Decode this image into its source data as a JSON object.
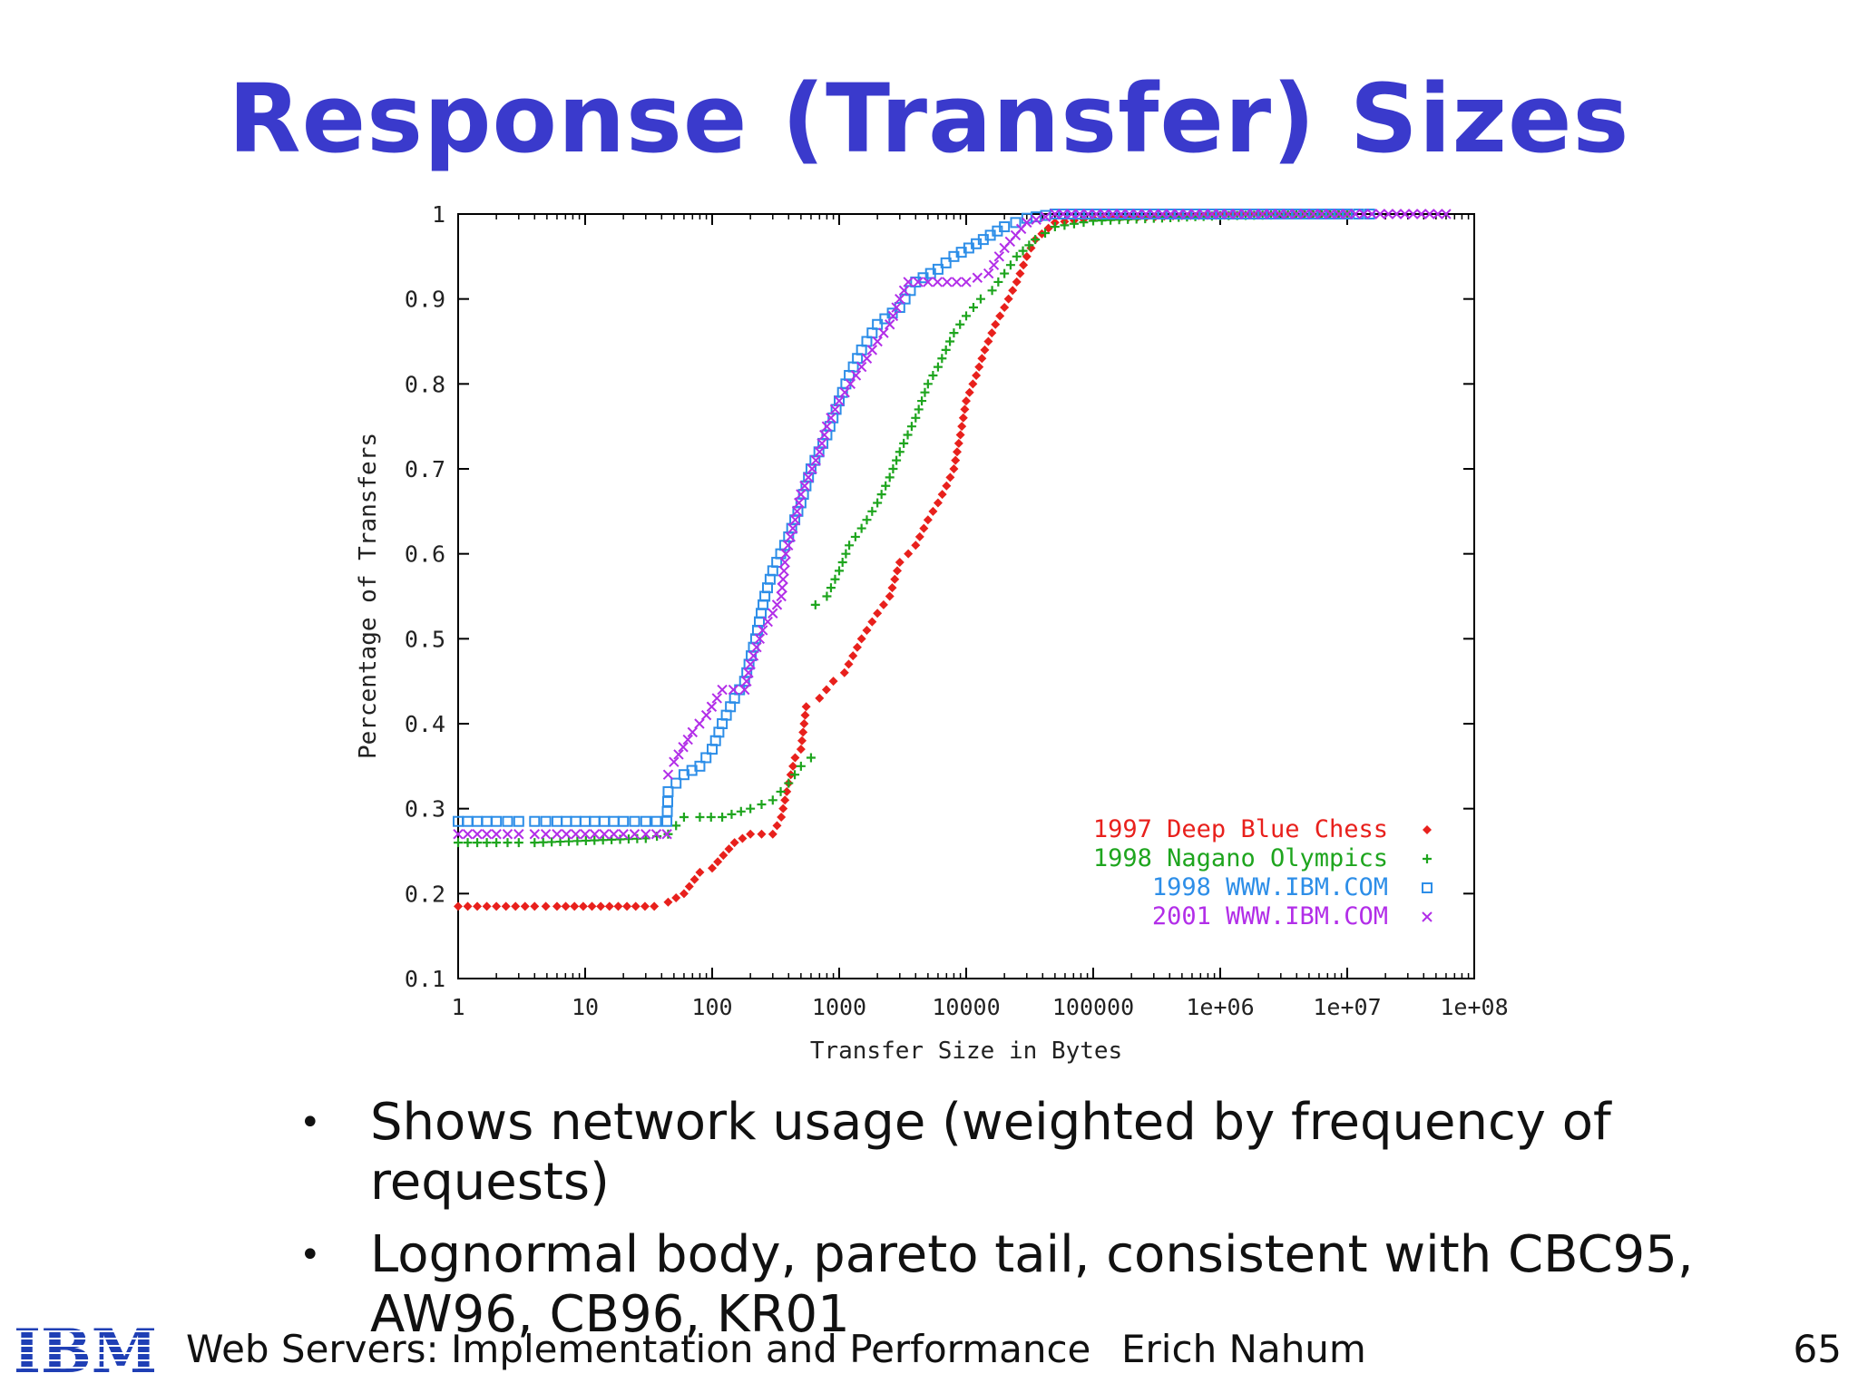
{
  "slide": {
    "title": "Response (Transfer) Sizes",
    "bullets": [
      "Shows network usage (weighted by frequency of requests)",
      "Lognormal body, pareto tail, consistent with CBC95, AW96, CB96, KR01"
    ],
    "footer": {
      "logo_text": "IBM",
      "course": "Web Servers: Implementation and Performance",
      "author": "Erich Nahum",
      "page": "65"
    }
  },
  "colors": {
    "title": "#3a3acc",
    "red": "#e8201c",
    "green": "#1ea51e",
    "blue": "#2d8ee8",
    "purple": "#b22ee8"
  },
  "chart_data": {
    "type": "scatter",
    "xlabel": "Transfer Size in Bytes",
    "ylabel": "Percentage of Transfers",
    "xscale": "log",
    "xlim": [
      1,
      100000000
    ],
    "ylim": [
      0.1,
      1
    ],
    "xticks": [
      "1",
      "10",
      "100",
      "1000",
      "10000",
      "100000",
      "1e+06",
      "1e+07",
      "1e+08"
    ],
    "yticks": [
      "0.1",
      "0.2",
      "0.3",
      "0.4",
      "0.5",
      "0.6",
      "0.7",
      "0.8",
      "0.9",
      "1"
    ],
    "legend_position": "bottom-right",
    "series": [
      {
        "name": "1997 Deep Blue Chess",
        "marker": "diamond",
        "color": "#e8201c",
        "points": [
          [
            1,
            0.185
          ],
          [
            2,
            0.185
          ],
          [
            4,
            0.185
          ],
          [
            6,
            0.185
          ],
          [
            25,
            0.185
          ],
          [
            35,
            0.185
          ],
          [
            45,
            0.19
          ],
          [
            60,
            0.2
          ],
          [
            80,
            0.225
          ],
          [
            100,
            0.23
          ],
          [
            150,
            0.26
          ],
          [
            200,
            0.27
          ],
          [
            300,
            0.27
          ],
          [
            350,
            0.29
          ],
          [
            400,
            0.33
          ],
          [
            450,
            0.36
          ],
          [
            500,
            0.37
          ],
          [
            550,
            0.42
          ],
          [
            700,
            0.43
          ],
          [
            900,
            0.45
          ],
          [
            1100,
            0.46
          ],
          [
            1500,
            0.5
          ],
          [
            2000,
            0.53
          ],
          [
            2500,
            0.55
          ],
          [
            3000,
            0.59
          ],
          [
            3500,
            0.6
          ],
          [
            4000,
            0.61
          ],
          [
            5000,
            0.64
          ],
          [
            6000,
            0.66
          ],
          [
            7000,
            0.68
          ],
          [
            8000,
            0.7
          ],
          [
            9000,
            0.74
          ],
          [
            10000,
            0.78
          ],
          [
            12000,
            0.81
          ],
          [
            14000,
            0.84
          ],
          [
            17000,
            0.87
          ],
          [
            20000,
            0.89
          ],
          [
            25000,
            0.92
          ],
          [
            30000,
            0.95
          ],
          [
            35000,
            0.97
          ],
          [
            50000,
            0.99
          ],
          [
            100000,
            0.995
          ],
          [
            500000,
            0.998
          ],
          [
            2000000,
            0.999
          ],
          [
            10000000,
            1.0
          ]
        ]
      },
      {
        "name": "1998 Nagano Olympics",
        "marker": "plus",
        "color": "#1ea51e",
        "points": [
          [
            1,
            0.26
          ],
          [
            2,
            0.26
          ],
          [
            3,
            0.26
          ],
          [
            4,
            0.26
          ],
          [
            30,
            0.265
          ],
          [
            45,
            0.27
          ],
          [
            60,
            0.29
          ],
          [
            80,
            0.29
          ],
          [
            120,
            0.29
          ],
          [
            200,
            0.3
          ],
          [
            300,
            0.31
          ],
          [
            400,
            0.33
          ],
          [
            500,
            0.35
          ],
          [
            600,
            0.36
          ],
          [
            650,
            0.54
          ],
          [
            800,
            0.55
          ],
          [
            1000,
            0.58
          ],
          [
            1200,
            0.61
          ],
          [
            1500,
            0.63
          ],
          [
            2000,
            0.66
          ],
          [
            2500,
            0.69
          ],
          [
            3000,
            0.72
          ],
          [
            4000,
            0.76
          ],
          [
            5000,
            0.8
          ],
          [
            6000,
            0.82
          ],
          [
            8000,
            0.86
          ],
          [
            10000,
            0.88
          ],
          [
            13000,
            0.9
          ],
          [
            16000,
            0.91
          ],
          [
            20000,
            0.93
          ],
          [
            25000,
            0.95
          ],
          [
            35000,
            0.97
          ],
          [
            50000,
            0.985
          ],
          [
            100000,
            0.992
          ],
          [
            300000,
            0.995
          ],
          [
            1000000,
            0.998
          ],
          [
            10000000,
            1.0
          ]
        ]
      },
      {
        "name": "1998 WWW.IBM.COM",
        "marker": "square",
        "color": "#2d8ee8",
        "points": [
          [
            1,
            0.285
          ],
          [
            2,
            0.285
          ],
          [
            3,
            0.285
          ],
          [
            4,
            0.285
          ],
          [
            6,
            0.285
          ],
          [
            10,
            0.285
          ],
          [
            20,
            0.285
          ],
          [
            30,
            0.285
          ],
          [
            44,
            0.285
          ],
          [
            45,
            0.32
          ],
          [
            60,
            0.34
          ],
          [
            80,
            0.35
          ],
          [
            100,
            0.37
          ],
          [
            120,
            0.4
          ],
          [
            150,
            0.43
          ],
          [
            180,
            0.45
          ],
          [
            220,
            0.5
          ],
          [
            260,
            0.55
          ],
          [
            300,
            0.58
          ],
          [
            400,
            0.62
          ],
          [
            500,
            0.66
          ],
          [
            600,
            0.7
          ],
          [
            800,
            0.74
          ],
          [
            1000,
            0.78
          ],
          [
            1200,
            0.81
          ],
          [
            1500,
            0.84
          ],
          [
            2000,
            0.87
          ],
          [
            3000,
            0.89
          ],
          [
            4000,
            0.92
          ],
          [
            6000,
            0.935
          ],
          [
            8000,
            0.95
          ],
          [
            12000,
            0.965
          ],
          [
            20000,
            0.985
          ],
          [
            30000,
            0.995
          ],
          [
            50000,
            1.0
          ],
          [
            1000000,
            1.0
          ],
          [
            10000000,
            1.0
          ],
          [
            15000000,
            1.0
          ]
        ]
      },
      {
        "name": "2001 WWW.IBM.COM",
        "marker": "cross",
        "color": "#b22ee8",
        "points": [
          [
            1,
            0.27
          ],
          [
            2,
            0.27
          ],
          [
            3,
            0.27
          ],
          [
            4,
            0.27
          ],
          [
            6,
            0.27
          ],
          [
            10,
            0.27
          ],
          [
            20,
            0.27
          ],
          [
            30,
            0.27
          ],
          [
            44,
            0.27
          ],
          [
            45,
            0.34
          ],
          [
            50,
            0.355
          ],
          [
            70,
            0.39
          ],
          [
            90,
            0.41
          ],
          [
            120,
            0.44
          ],
          [
            180,
            0.44
          ],
          [
            200,
            0.47
          ],
          [
            250,
            0.51
          ],
          [
            300,
            0.53
          ],
          [
            350,
            0.55
          ],
          [
            380,
            0.6
          ],
          [
            450,
            0.64
          ],
          [
            500,
            0.67
          ],
          [
            700,
            0.72
          ],
          [
            800,
            0.75
          ],
          [
            1000,
            0.78
          ],
          [
            1500,
            0.82
          ],
          [
            2000,
            0.85
          ],
          [
            2500,
            0.87
          ],
          [
            3000,
            0.9
          ],
          [
            3500,
            0.92
          ],
          [
            5000,
            0.92
          ],
          [
            10000,
            0.92
          ],
          [
            15000,
            0.93
          ],
          [
            20000,
            0.96
          ],
          [
            30000,
            0.99
          ],
          [
            50000,
            1.0
          ],
          [
            1000000,
            1.0
          ],
          [
            10000000,
            1.0
          ],
          [
            60000000,
            1.0
          ]
        ]
      }
    ]
  }
}
